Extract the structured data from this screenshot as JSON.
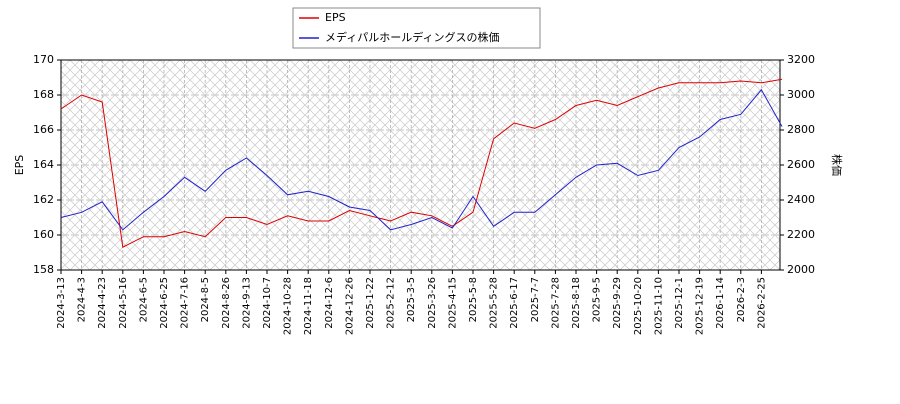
{
  "chart_data": {
    "type": "line",
    "x": [
      "2024-3-13",
      "2024-4-3",
      "2024-4-23",
      "2024-5-16",
      "2024-6-5",
      "2024-6-25",
      "2024-7-16",
      "2024-8-5",
      "2024-8-26",
      "2024-9-13",
      "2024-10-7",
      "2024-10-28",
      "2024-11-18",
      "2024-12-6",
      "2024-12-26",
      "2025-1-22",
      "2025-2-12",
      "2025-3-5",
      "2025-3-26",
      "2025-4-15",
      "2025-5-8",
      "2025-5-28",
      "2025-6-17",
      "2025-7-7",
      "2025-7-28",
      "2025-8-18",
      "2025-9-5",
      "2025-9-29",
      "2025-10-20",
      "2025-11-10",
      "2025-12-1",
      "2025-12-19",
      "2026-1-14",
      "2026-2-3",
      "2026-2-25",
      "2026-3-13"
    ],
    "xticks": [
      "2024-3-13",
      "2024-4-3",
      "2024-4-23",
      "2024-5-16",
      "2024-6-5",
      "2024-6-25",
      "2024-7-16",
      "2024-8-5",
      "2024-8-26",
      "2024-9-13",
      "2024-10-7",
      "2024-10-28",
      "2024-11-18",
      "2024-12-6",
      "2024-12-26",
      "2025-1-22",
      "2025-2-12",
      "2025-3-5",
      "2025-3-26",
      "2025-4-15",
      "2025-5-8",
      "2025-5-28",
      "2025-6-17",
      "2025-7-7",
      "2025-7-28",
      "2025-8-18",
      "2025-9-5",
      "2025-9-29",
      "2025-10-20",
      "2025-11-10",
      "2025-12-1",
      "2025-12-19",
      "2026-1-14",
      "2026-2-3",
      "2026-2-25"
    ],
    "y_label": "EPS",
    "y2_label": "株価",
    "ylim": [
      158,
      170
    ],
    "yticks": [
      158,
      160,
      162,
      164,
      166,
      168,
      170
    ],
    "y2lim": [
      2000,
      3200
    ],
    "y2ticks": [
      2000,
      2200,
      2400,
      2600,
      2800,
      3000,
      3200
    ],
    "grid": true,
    "legend": "upper center",
    "series": [
      {
        "name": "EPS",
        "color": "#dd0000",
        "values": [
          167.2,
          168.0,
          167.6,
          159.3,
          159.9,
          159.9,
          160.2,
          159.9,
          161.0,
          161.0,
          160.6,
          161.1,
          160.8,
          160.8,
          161.4,
          161.1,
          160.8,
          161.3,
          161.1,
          160.5,
          161.3,
          165.5,
          166.4,
          166.1,
          166.6,
          167.4,
          167.7,
          167.4,
          167.9,
          168.4,
          168.7,
          168.7,
          168.7,
          168.8,
          168.7,
          168.9
        ]
      },
      {
        "name": "メディパルホールディングスの株価",
        "color": "#2222cc",
        "axis": "y2",
        "values": [
          2300,
          2330,
          2390,
          2230,
          2330,
          2420,
          2530,
          2450,
          2570,
          2640,
          2540,
          2430,
          2450,
          2420,
          2360,
          2340,
          2230,
          2260,
          2300,
          2240,
          2420,
          2250,
          2330,
          2330,
          2430,
          2530,
          2600,
          2610,
          2540,
          2570,
          2700,
          2760,
          2860,
          2890,
          3030,
          2820
        ]
      }
    ]
  }
}
